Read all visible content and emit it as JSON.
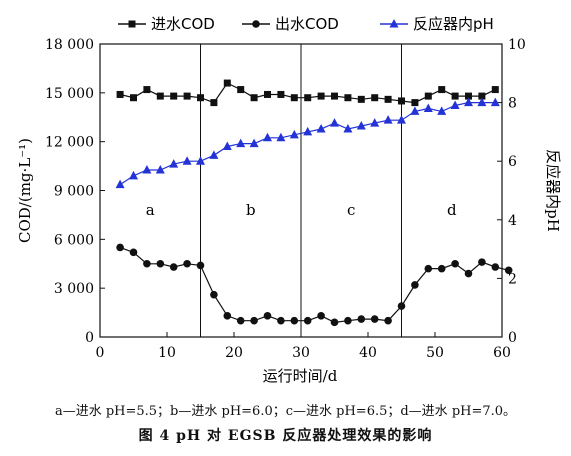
{
  "chart_data": {
    "type": "line",
    "legend": [
      "进水COD",
      "出水COD",
      "反应器内pH"
    ],
    "legend_position": "top",
    "xlabel": "运行时间/d",
    "ylabel_left": "COD/(mg·L⁻¹)",
    "ylabel_right": "反应器内pH",
    "xlim": [
      0,
      60
    ],
    "ylim_left": [
      0,
      18000
    ],
    "ylim_right": [
      0,
      10
    ],
    "x_ticks": [
      "0",
      "10",
      "20",
      "30",
      "40",
      "50",
      "60"
    ],
    "y_left_ticks": [
      "0",
      "3 000",
      "6 000",
      "9 000",
      "12 000",
      "15 000",
      "18 000"
    ],
    "y_right_ticks": [
      "0",
      "2",
      "4",
      "6",
      "8",
      "10"
    ],
    "grid": false,
    "phase_dividers_x": [
      15,
      30,
      45
    ],
    "phase_labels": [
      "a",
      "b",
      "c",
      "d"
    ],
    "series": [
      {
        "name": "进水COD",
        "axis": "left",
        "marker": "square",
        "color": "#111111",
        "x": [
          3,
          5,
          7,
          9,
          11,
          13,
          15,
          17,
          19,
          21,
          23,
          25,
          27,
          29,
          31,
          33,
          35,
          37,
          39,
          41,
          43,
          45,
          47,
          49,
          51,
          53,
          55,
          57,
          59
        ],
        "y": [
          14900,
          14700,
          15200,
          14800,
          14800,
          14800,
          14700,
          14400,
          15600,
          15200,
          14700,
          14900,
          14900,
          14700,
          14700,
          14800,
          14800,
          14700,
          14600,
          14700,
          14600,
          14500,
          14400,
          14800,
          15200,
          14800,
          14800,
          14800,
          15200
        ]
      },
      {
        "name": "出水COD",
        "axis": "left",
        "marker": "circle",
        "color": "#111111",
        "x": [
          3,
          5,
          7,
          9,
          11,
          13,
          15,
          17,
          19,
          21,
          23,
          25,
          27,
          29,
          31,
          33,
          35,
          37,
          39,
          41,
          43,
          45,
          47,
          49,
          51,
          53,
          55,
          57,
          59,
          61
        ],
        "y": [
          5500,
          5200,
          4500,
          4500,
          4300,
          4500,
          4400,
          2600,
          1300,
          1000,
          1000,
          1300,
          1000,
          1000,
          1000,
          1300,
          900,
          1000,
          1100,
          1100,
          1000,
          1900,
          3200,
          4200,
          4200,
          4500,
          3900,
          4600,
          4300,
          4100
        ]
      },
      {
        "name": "反应器内pH",
        "axis": "right",
        "marker": "triangle",
        "color": "#2433d6",
        "x": [
          3,
          5,
          7,
          9,
          11,
          13,
          15,
          17,
          19,
          21,
          23,
          25,
          27,
          29,
          31,
          33,
          35,
          37,
          39,
          41,
          43,
          45,
          47,
          49,
          51,
          53,
          55,
          57,
          59
        ],
        "y": [
          5.2,
          5.5,
          5.7,
          5.7,
          5.9,
          6.0,
          6.0,
          6.2,
          6.5,
          6.6,
          6.6,
          6.8,
          6.8,
          6.9,
          7.0,
          7.1,
          7.3,
          7.1,
          7.2,
          7.3,
          7.4,
          7.4,
          7.7,
          7.8,
          7.7,
          7.9,
          8.0,
          8.0,
          8.0
        ]
      }
    ]
  },
  "caption": {
    "note": "a—进水 pH=5.5；b—进水 pH=6.0；c—进水 pH=6.5；d—进水 pH=7.0。",
    "figure": "图 4   pH 对 EGSB 反应器处理效果的影响"
  }
}
